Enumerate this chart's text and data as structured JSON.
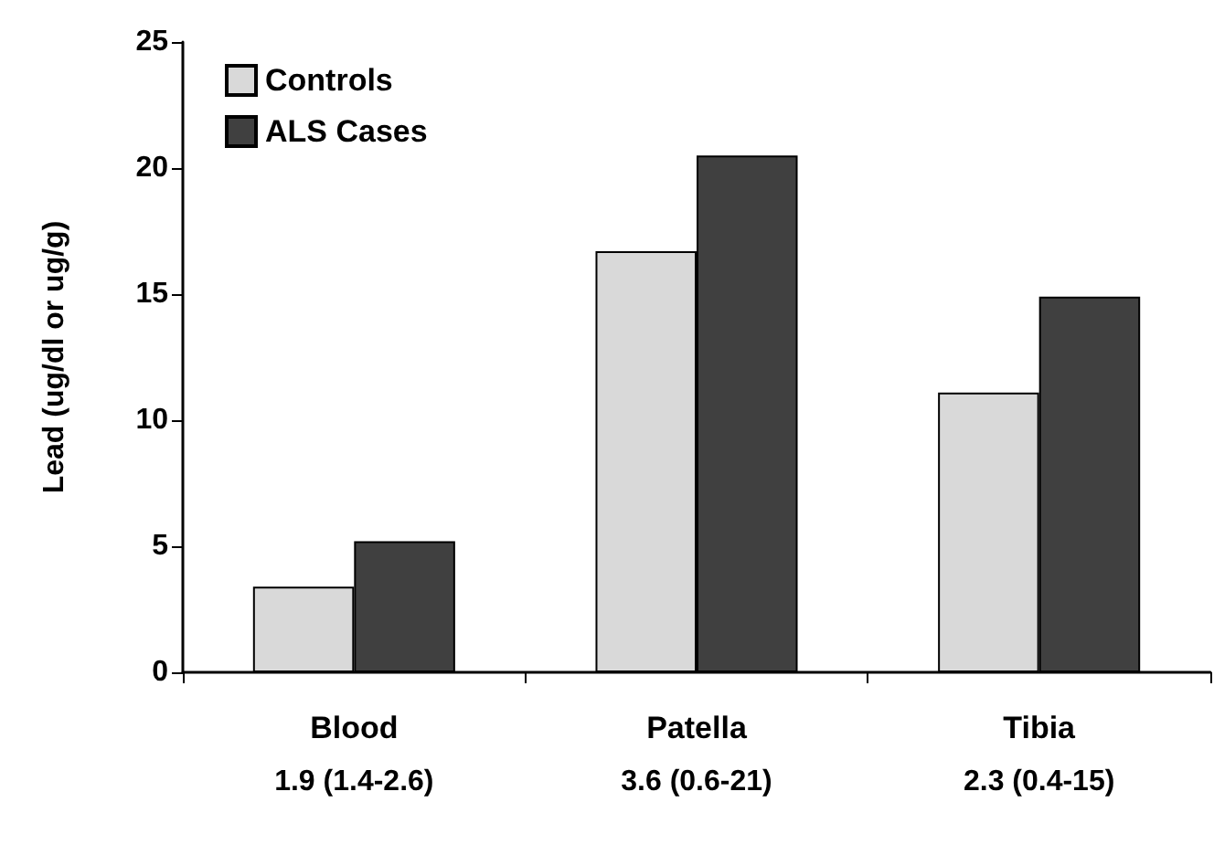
{
  "chart_data": {
    "type": "bar",
    "ylabel": "Lead (ug/dl or ug/g)",
    "categories": [
      "Blood",
      "Patella",
      "Tibia"
    ],
    "series": [
      {
        "name": "Controls",
        "color": "#d9d9d9",
        "values": [
          3.4,
          16.7,
          11.1
        ]
      },
      {
        "name": "ALS Cases",
        "color": "#404040",
        "values": [
          5.2,
          20.5,
          14.9
        ]
      }
    ],
    "ylim": [
      0,
      25
    ],
    "yticks": [
      0,
      5,
      10,
      15,
      20,
      25
    ],
    "grid": false,
    "legend": "top left",
    "annotations": [
      "1.9 (1.4-2.6)",
      "3.6 (0.6-21)",
      "2.3 (0.4-15)"
    ]
  }
}
